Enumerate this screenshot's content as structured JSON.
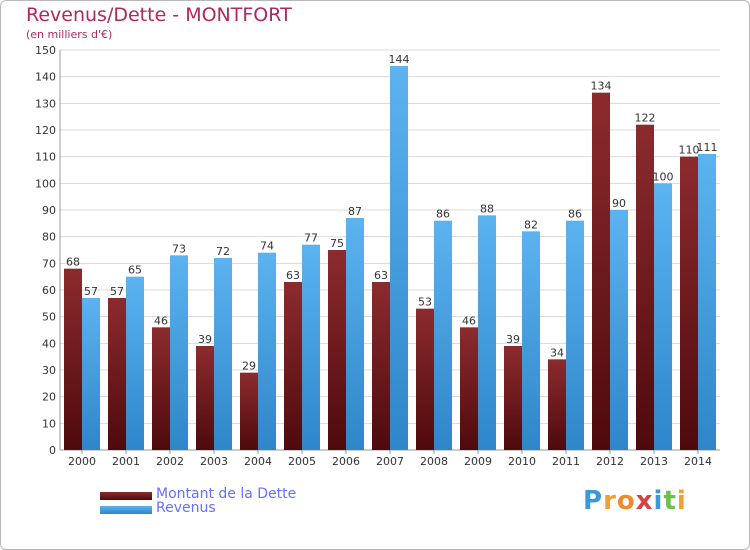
{
  "header": {
    "title": "Revenus/Dette - MONTFORT",
    "subtitle": "(en milliers d'€)"
  },
  "colors": {
    "dette": "#7a1b1e",
    "revenus": "#4aa3e2",
    "title": "#b0285c",
    "legend_text": "#6470ff"
  },
  "chart_data": {
    "type": "bar",
    "categories": [
      "2000",
      "2001",
      "2002",
      "2003",
      "2004",
      "2005",
      "2006",
      "2007",
      "2008",
      "2009",
      "2010",
      "2011",
      "2012",
      "2013",
      "2014"
    ],
    "series": [
      {
        "name": "Montant de la Dette",
        "values": [
          68,
          57,
          46,
          39,
          29,
          63,
          75,
          63,
          53,
          46,
          39,
          34,
          134,
          122,
          110
        ]
      },
      {
        "name": "Revenus",
        "values": [
          57,
          65,
          73,
          72,
          74,
          77,
          87,
          144,
          86,
          88,
          82,
          86,
          90,
          100,
          111
        ]
      }
    ],
    "ylim": [
      0,
      150
    ],
    "yticks": [
      0,
      10,
      20,
      30,
      40,
      50,
      60,
      70,
      80,
      90,
      100,
      110,
      120,
      130,
      140,
      150
    ],
    "grid": true,
    "legend_position": "bottom-left"
  },
  "legend": {
    "items": [
      {
        "label": "Montant de la Dette",
        "color": "#7a1b1e"
      },
      {
        "label": "Revenus",
        "color": "#4aa3e2"
      }
    ]
  },
  "logo": {
    "letters": [
      "P",
      "r",
      "o",
      "x",
      "i",
      "t",
      "i"
    ],
    "colors": [
      "#3a9ad9",
      "#f0a030",
      "#f08a2c",
      "#d94040",
      "#3a9ad9",
      "#6cc04a",
      "#f0a030"
    ]
  }
}
